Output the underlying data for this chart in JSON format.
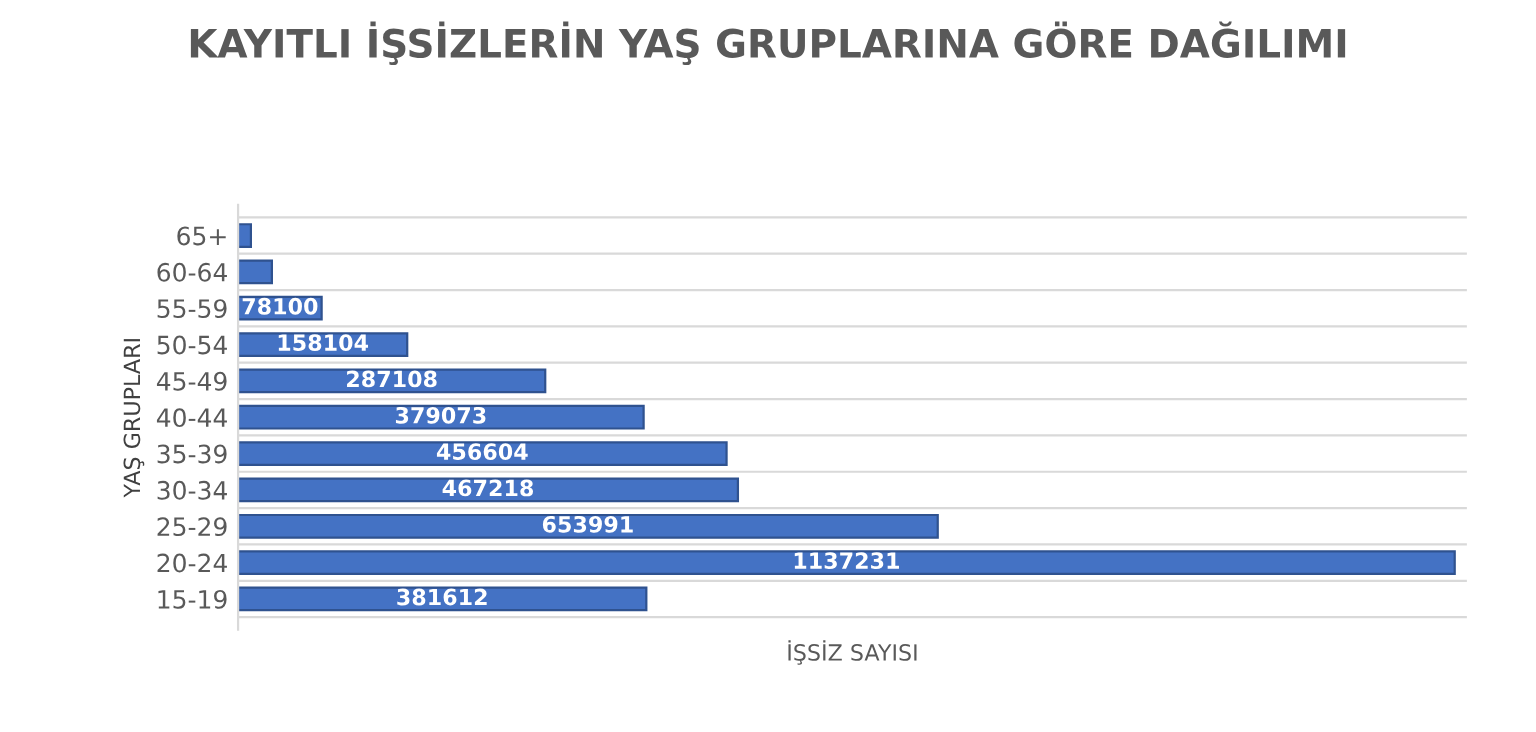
{
  "chart_data": {
    "type": "bar",
    "orientation": "horizontal",
    "title": "KAYITLI İŞSİZLERİN YAŞ GRUPLARINA GÖRE DAĞILIMI",
    "xlabel": "İŞSİZ SAYISI",
    "ylabel": "YAŞ GRUPLARI",
    "categories": [
      "65+",
      "60-64",
      "55-59",
      "50-54",
      "45-49",
      "40-44",
      "35-39",
      "30-34",
      "25-29",
      "20-24",
      "15-19"
    ],
    "values": [
      12000,
      31600,
      78100,
      158104,
      287108,
      379073,
      456604,
      467218,
      653991,
      1137231,
      381612
    ],
    "value_labels": [
      null,
      null,
      "78100",
      "158104",
      "287108",
      "379073",
      "456604",
      "467218",
      "653991",
      "1137231",
      "381612"
    ],
    "color": "#4472c4",
    "grid": "y"
  }
}
